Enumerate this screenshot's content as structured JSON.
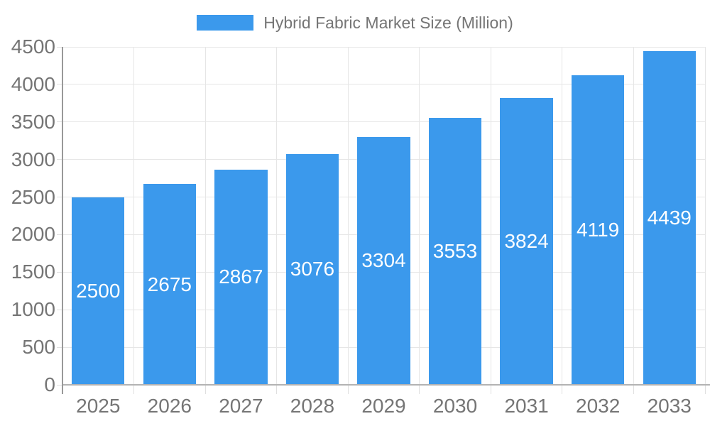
{
  "legend": {
    "label": "Hybrid Fabric Market Size (Million)"
  },
  "colors": {
    "bar": "#3B99EC",
    "value_label": "#FFFFFF",
    "axis_text": "#757575",
    "gridline": "#E6E6E6",
    "y_axis_line": "#999999",
    "x_axis_line": "#B3B3B3"
  },
  "chart_data": {
    "type": "bar",
    "title": "Hybrid Fabric Market Size (Million)",
    "categories": [
      "2025",
      "2026",
      "2027",
      "2028",
      "2029",
      "2030",
      "2031",
      "2032",
      "2033"
    ],
    "values": [
      2500,
      2675,
      2867,
      3076,
      3304,
      3553,
      3824,
      4119,
      4439
    ],
    "value_labels": [
      "2500",
      "2675",
      "2867",
      "3076",
      "3304",
      "3553",
      "3824",
      "4119",
      "4439"
    ],
    "xlabel": "",
    "ylabel": "",
    "ylim": [
      0,
      4500
    ],
    "ytick_step": 500,
    "ytick_labels": [
      "0",
      "500",
      "1000",
      "1500",
      "2000",
      "2500",
      "3000",
      "3500",
      "4000",
      "4500"
    ],
    "grid": true,
    "legend_position": "top",
    "value_label_position": "inside-center"
  }
}
